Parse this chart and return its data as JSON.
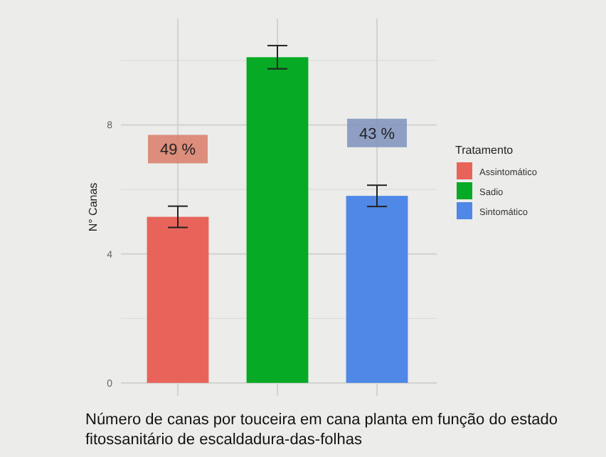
{
  "chart_data": {
    "type": "bar",
    "ylabel": "N° Canas",
    "categories": [
      null,
      null,
      null
    ],
    "ylim": [
      -0.4,
      11.3
    ],
    "yticks": [
      0,
      4,
      8
    ],
    "grid": true,
    "legend": "right",
    "legend_title": "Tratamento",
    "series": [
      {
        "name": "Assintomático",
        "color": "#e8645a",
        "values": [
          5.15,
          null,
          null
        ],
        "errors": [
          0.33,
          null,
          null
        ]
      },
      {
        "name": "Sadio",
        "color": "#06aa24",
        "values": [
          null,
          10.1,
          null
        ],
        "errors": [
          null,
          0.36,
          null
        ]
      },
      {
        "name": "Sintomático",
        "color": "#4f88e6",
        "values": [
          null,
          null,
          5.8
        ],
        "errors": [
          null,
          null,
          0.33
        ]
      }
    ],
    "annotations": [
      {
        "text": "49 %",
        "y": 7.25
      },
      {
        "text": "43 %",
        "y": 7.75
      },
      "Número de canas por touceira em cana planta em função do estado fitossanitário de escaldadura-das-folhas"
    ]
  }
}
